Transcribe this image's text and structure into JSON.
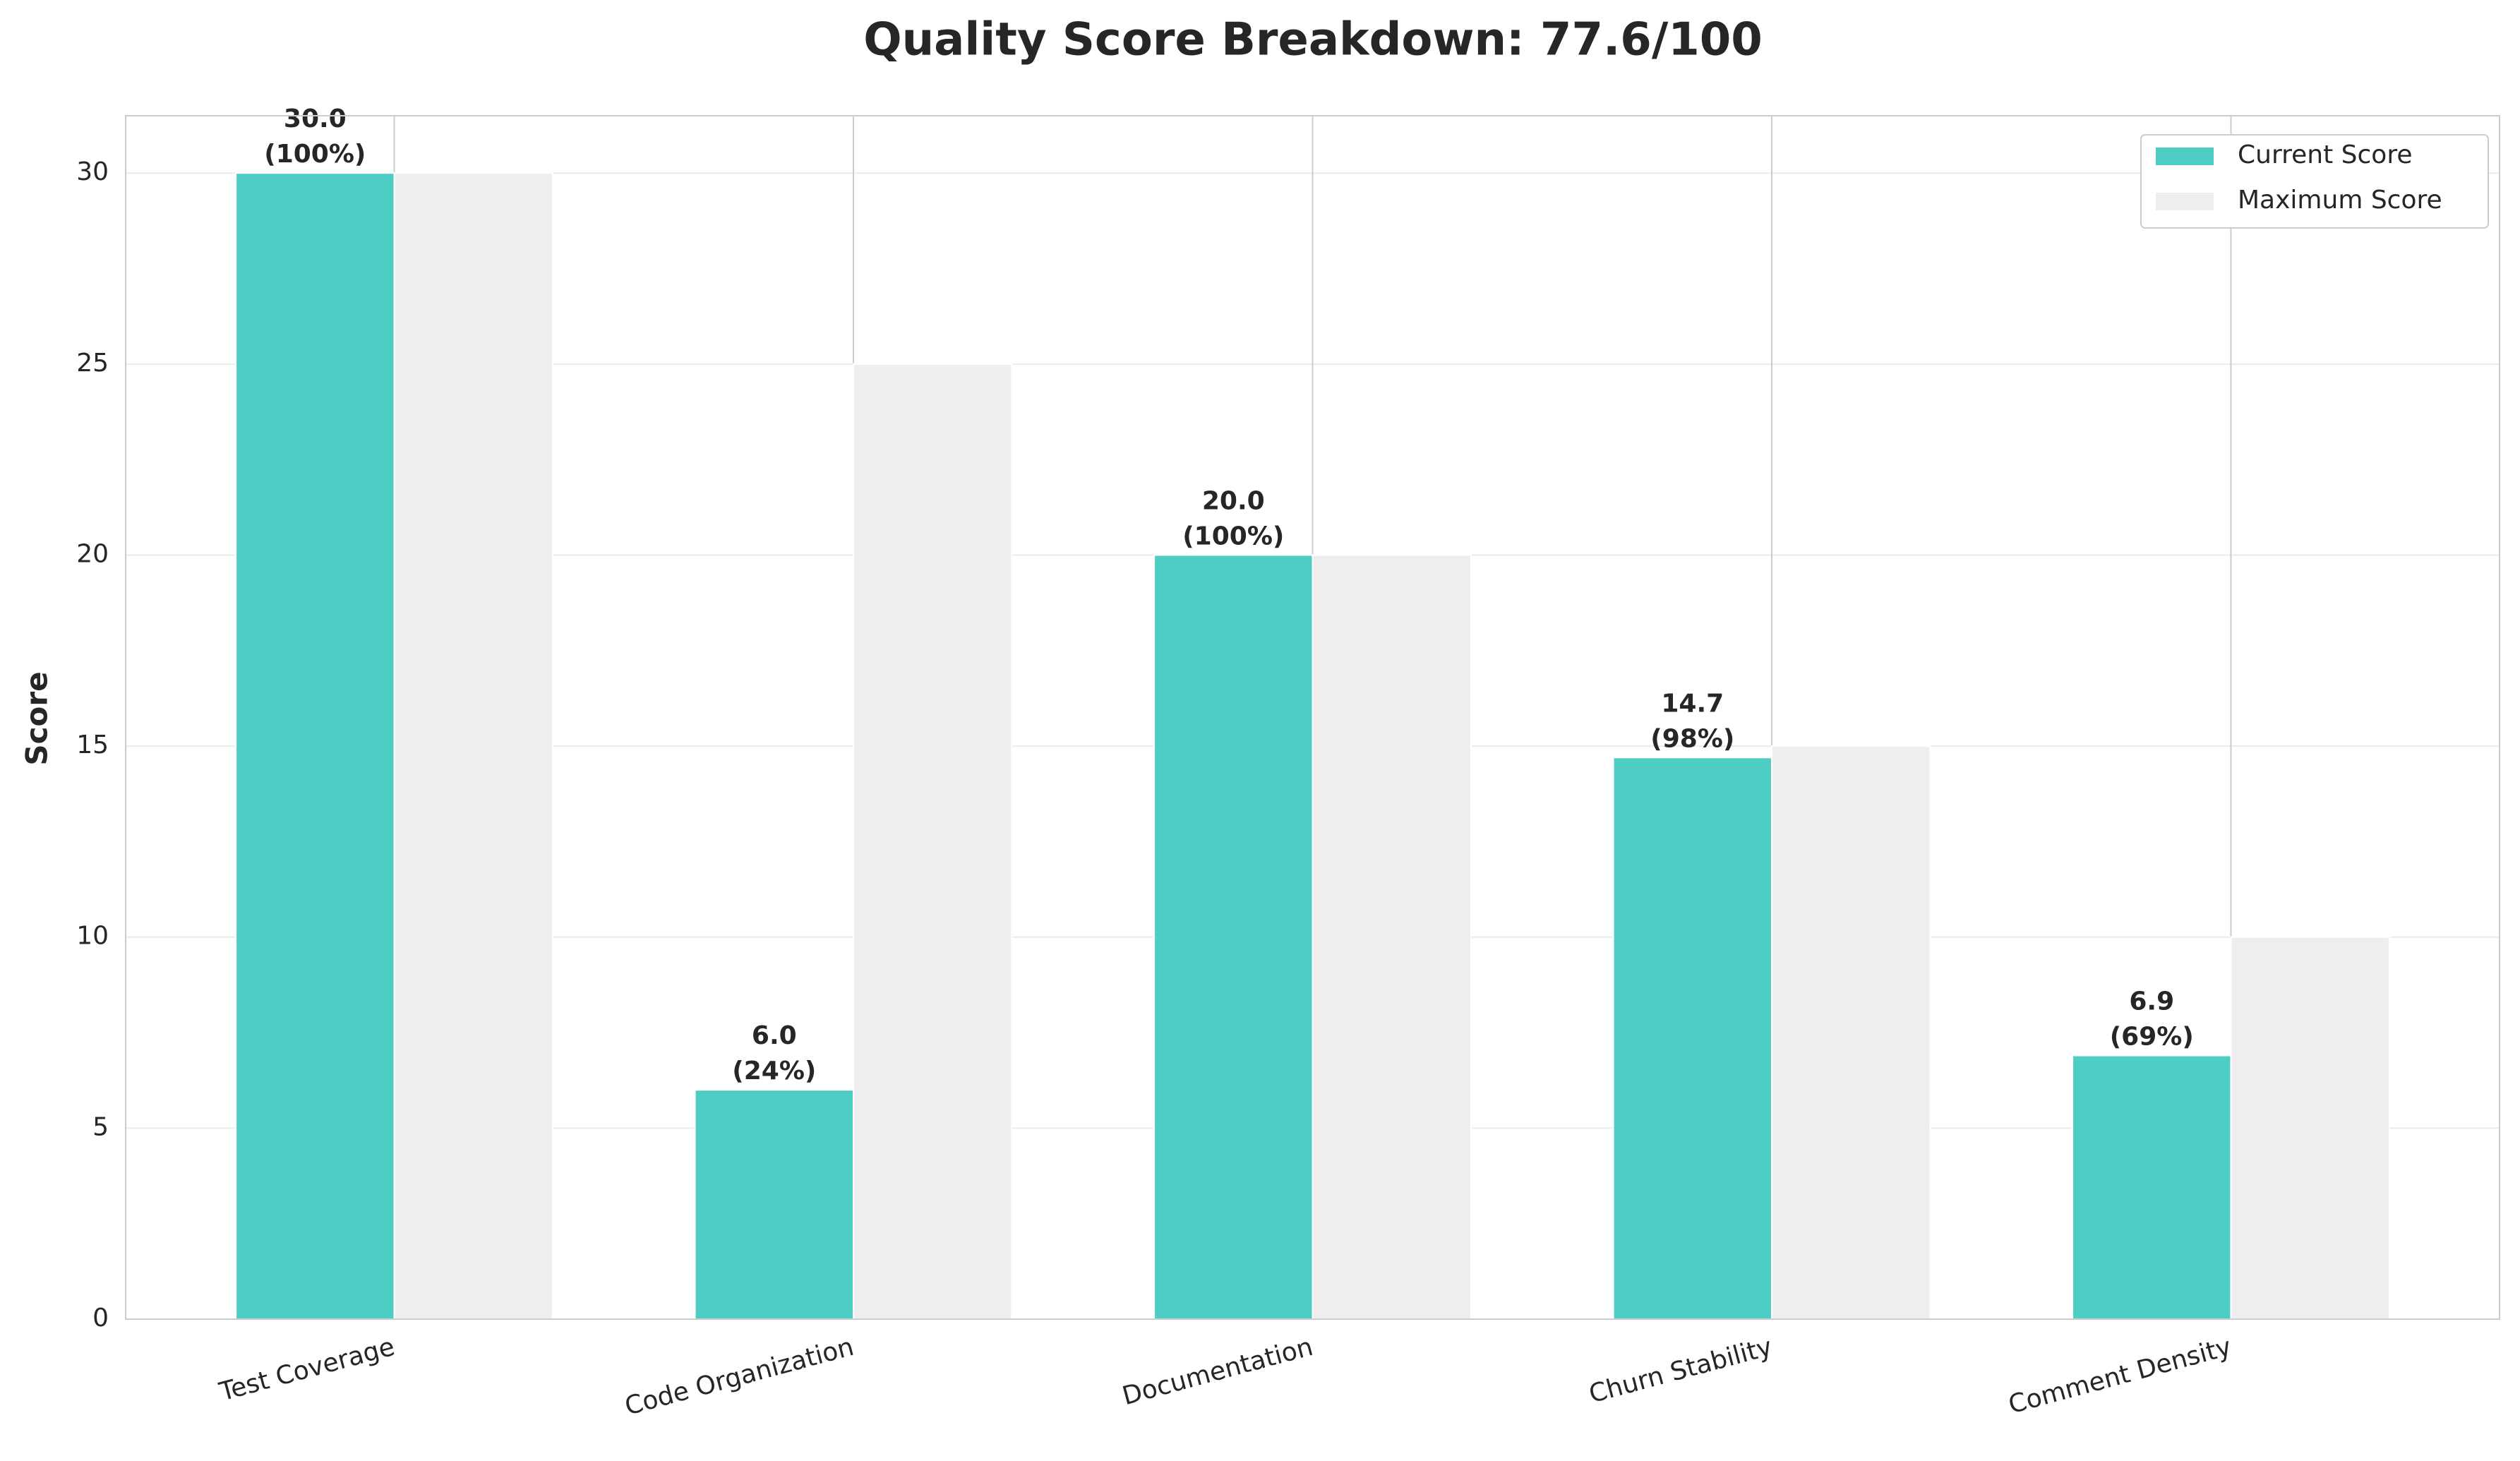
{
  "chart_data": {
    "type": "bar",
    "title": "Quality Score Breakdown: 77.6/100",
    "y_label": "Score",
    "categories": [
      "Test Coverage",
      "Code Organization",
      "Documentation",
      "Churn Stability",
      "Comment Density"
    ],
    "series": [
      {
        "name": "Current Score",
        "color": "#4ecdc4",
        "values": [
          30.0,
          6.0,
          20.0,
          14.7,
          6.9
        ],
        "value_labels": [
          "30.0",
          "6.0",
          "20.0",
          "14.7",
          "6.9"
        ],
        "percent_labels": [
          "(100%)",
          "(24%)",
          "(100%)",
          "(98%)",
          "(69%)"
        ]
      },
      {
        "name": "Maximum Score",
        "color": "#eeeeee",
        "values": [
          30,
          25,
          20,
          15,
          10
        ]
      }
    ],
    "ylim": [
      0,
      31.5
    ],
    "yticks": [
      0,
      5,
      10,
      15,
      20,
      25,
      30
    ],
    "grid": true,
    "legend": "upper right"
  }
}
